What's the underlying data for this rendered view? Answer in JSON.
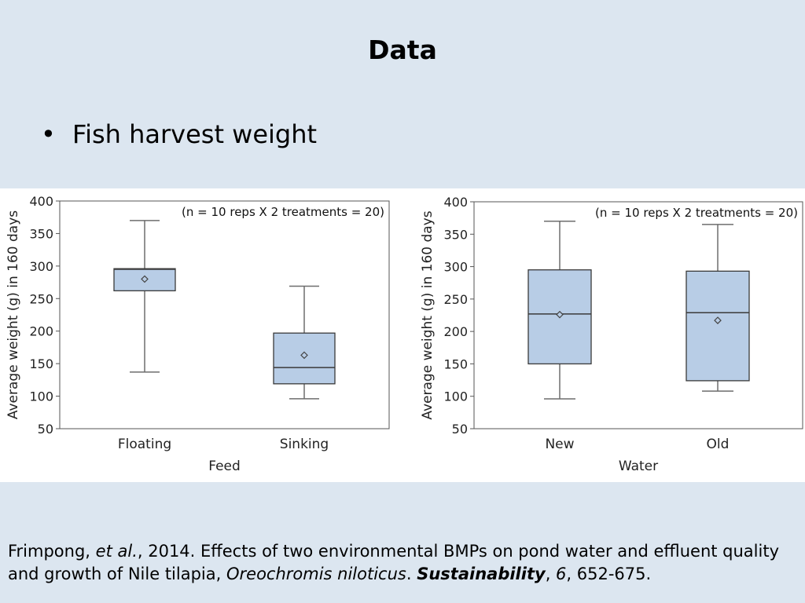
{
  "slide": {
    "title": "Data",
    "bullet": "Fish harvest weight"
  },
  "colors": {
    "background": "#dce6f0",
    "box_fill": "#b8cde6",
    "box_stroke": "#3a3a3a",
    "whisker": "#6d6d6d"
  },
  "chart_data": [
    {
      "type": "box",
      "xlabel": "Feed",
      "ylabel": "Average weight (g) in 160 days",
      "ylim": [
        50,
        400
      ],
      "yticks": [
        50,
        100,
        150,
        200,
        250,
        300,
        350,
        400
      ],
      "annotation": "(n = 10 reps X 2 treatments = 20)",
      "grid": false,
      "categories": [
        "Floating",
        "Sinking"
      ],
      "boxes": [
        {
          "min": 137,
          "q1": 262,
          "median": 295,
          "q3": 296,
          "max": 370,
          "mean": 280
        },
        {
          "min": 96,
          "q1": 119,
          "median": 144,
          "q3": 197,
          "max": 269,
          "mean": 163
        }
      ]
    },
    {
      "type": "box",
      "xlabel": "Water",
      "ylabel": "Average weight (g) in 160 days",
      "ylim": [
        50,
        400
      ],
      "yticks": [
        50,
        100,
        150,
        200,
        250,
        300,
        350,
        400
      ],
      "annotation": "(n = 10 reps X 2 treatments = 20)",
      "grid": false,
      "categories": [
        "New",
        "Old"
      ],
      "boxes": [
        {
          "min": 96,
          "q1": 150,
          "median": 227,
          "q3": 295,
          "max": 370,
          "mean": 226
        },
        {
          "min": 108,
          "q1": 124,
          "median": 229,
          "q3": 293,
          "max": 365,
          "mean": 217
        }
      ]
    }
  ],
  "citation": {
    "authors": "Frimpong, ",
    "etal": "et al.",
    "year_title": ", 2014. Effects of two environmental BMPs on pond water and effluent quality and growth of Nile tilapia, ",
    "species": "Oreochromis niloticus",
    "sep1": ". ",
    "journal": "Sustainability",
    "sep2": ", ",
    "volume": "6",
    "pages": ", 652-675."
  }
}
